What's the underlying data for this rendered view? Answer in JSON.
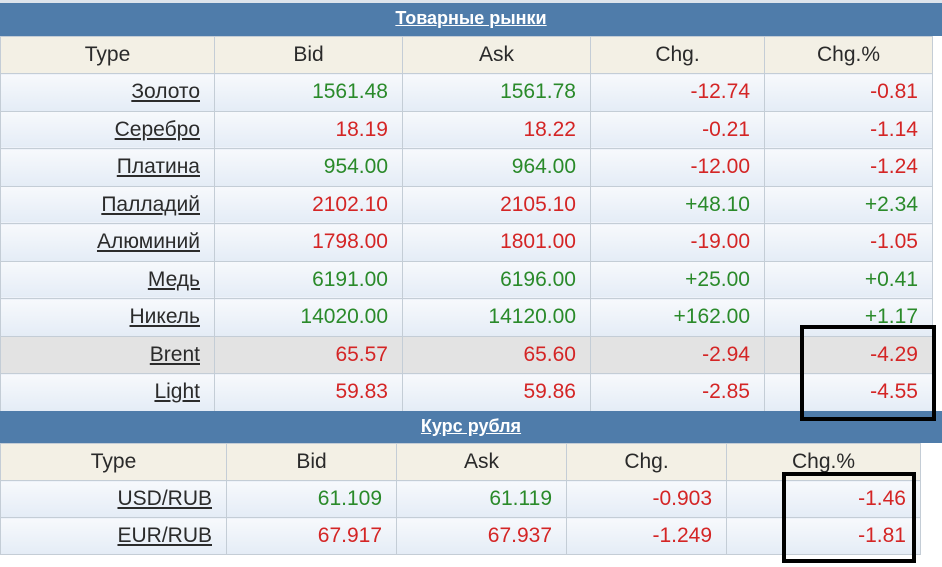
{
  "commodities": {
    "title": "Товарные рынки",
    "headers": [
      "Type",
      "Bid",
      "Ask",
      "Chg.",
      "Chg.%"
    ],
    "rows": [
      {
        "name": "Золото",
        "bid": "1561.48",
        "ask": "1561.78",
        "chg": "-12.74",
        "chgp": "-0.81",
        "bid_dir": "pos",
        "ask_dir": "pos",
        "chg_dir": "neg",
        "chgp_dir": "neg"
      },
      {
        "name": "Серебро",
        "bid": "18.19",
        "ask": "18.22",
        "chg": "-0.21",
        "chgp": "-1.14",
        "bid_dir": "neg",
        "ask_dir": "neg",
        "chg_dir": "neg",
        "chgp_dir": "neg"
      },
      {
        "name": "Платина",
        "bid": "954.00",
        "ask": "964.00",
        "chg": "-12.00",
        "chgp": "-1.24",
        "bid_dir": "pos",
        "ask_dir": "pos",
        "chg_dir": "neg",
        "chgp_dir": "neg"
      },
      {
        "name": "Палладий",
        "bid": "2102.10",
        "ask": "2105.10",
        "chg": "+48.10",
        "chgp": "+2.34",
        "bid_dir": "neg",
        "ask_dir": "neg",
        "chg_dir": "pos",
        "chgp_dir": "pos"
      },
      {
        "name": "Алюминий",
        "bid": "1798.00",
        "ask": "1801.00",
        "chg": "-19.00",
        "chgp": "-1.05",
        "bid_dir": "neg",
        "ask_dir": "neg",
        "chg_dir": "neg",
        "chgp_dir": "neg"
      },
      {
        "name": "Медь",
        "bid": "6191.00",
        "ask": "6196.00",
        "chg": "+25.00",
        "chgp": "+0.41",
        "bid_dir": "pos",
        "ask_dir": "pos",
        "chg_dir": "pos",
        "chgp_dir": "pos"
      },
      {
        "name": "Никель",
        "bid": "14020.00",
        "ask": "14120.00",
        "chg": "+162.00",
        "chgp": "+1.17",
        "bid_dir": "pos",
        "ask_dir": "pos",
        "chg_dir": "pos",
        "chgp_dir": "pos"
      },
      {
        "name": "Brent",
        "bid": "65.57",
        "ask": "65.60",
        "chg": "-2.94",
        "chgp": "-4.29",
        "bid_dir": "neg",
        "ask_dir": "neg",
        "chg_dir": "neg",
        "chgp_dir": "neg",
        "highlight": true
      },
      {
        "name": "Light",
        "bid": "59.83",
        "ask": "59.86",
        "chg": "-2.85",
        "chgp": "-4.55",
        "bid_dir": "neg",
        "ask_dir": "neg",
        "chg_dir": "neg",
        "chgp_dir": "neg"
      }
    ]
  },
  "ruble": {
    "title": "Курс рубля",
    "headers": [
      "Type",
      "Bid",
      "Ask",
      "Chg.",
      "Chg.%"
    ],
    "rows": [
      {
        "name": "USD/RUB",
        "bid": "61.109",
        "ask": "61.119",
        "chg": "-0.903",
        "chgp": "-1.46",
        "bid_dir": "pos",
        "ask_dir": "pos",
        "chg_dir": "neg",
        "chgp_dir": "neg"
      },
      {
        "name": "EUR/RUB",
        "bid": "67.917",
        "ask": "67.937",
        "chg": "-1.249",
        "chgp": "-1.81",
        "bid_dir": "neg",
        "ask_dir": "neg",
        "chg_dir": "neg",
        "chgp_dir": "neg"
      }
    ]
  },
  "colors": {
    "header_bar": "#4f7caa",
    "positive": "#2a8a2a",
    "negative": "#d42525",
    "highlight_row": "#e3e3e3",
    "annotation_box": "#000000"
  }
}
